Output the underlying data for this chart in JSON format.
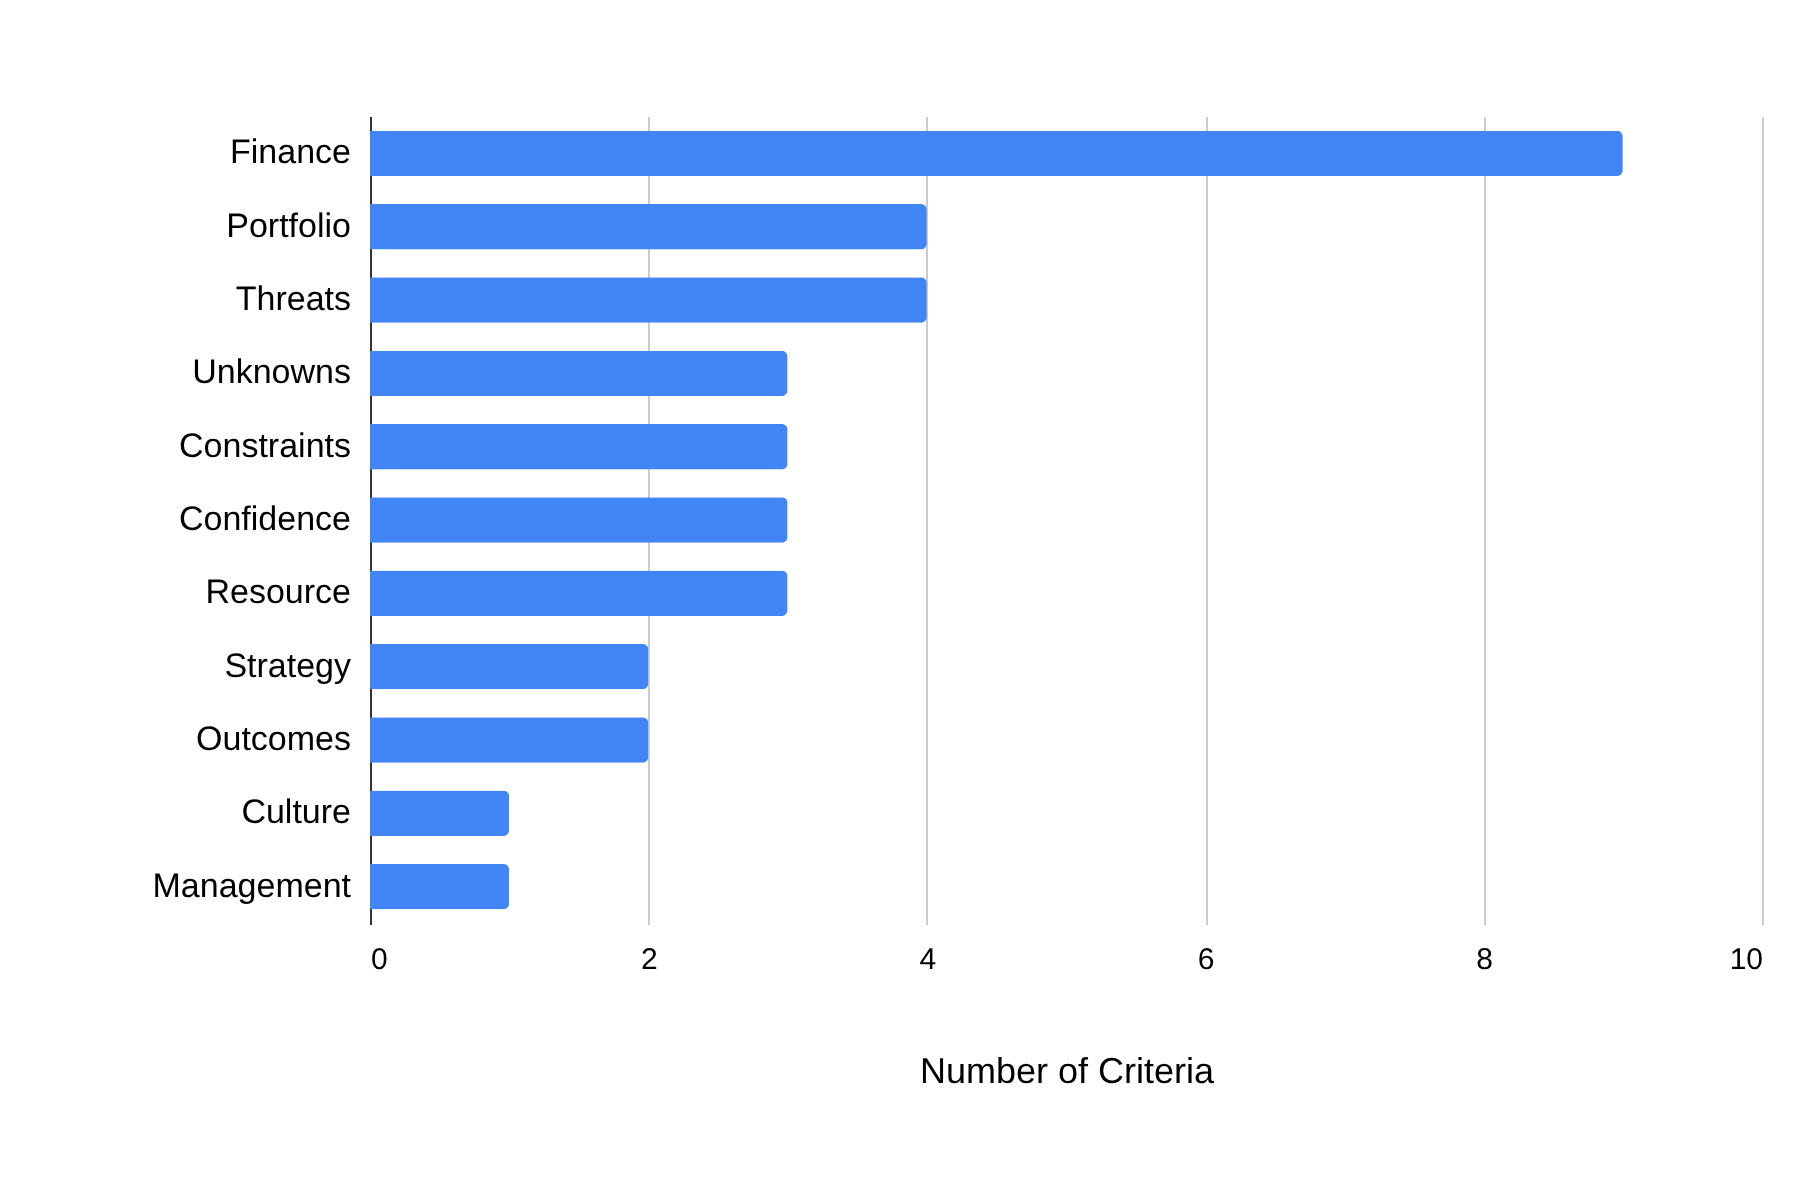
{
  "chart_data": {
    "type": "bar",
    "orientation": "horizontal",
    "xlabel": "Number of Criteria",
    "categories": [
      "Finance",
      "Portfolio",
      "Threats",
      "Unknowns",
      "Constraints",
      "Confidence",
      "Resource",
      "Strategy",
      "Outcomes",
      "Culture",
      "Management"
    ],
    "values": [
      9,
      4,
      4,
      3,
      3,
      3,
      3,
      2,
      2,
      1,
      1
    ],
    "color": "#4285f4",
    "xlim": [
      0,
      10
    ],
    "xticks": [
      0,
      2,
      4,
      6,
      8,
      10
    ],
    "grid": "x"
  }
}
